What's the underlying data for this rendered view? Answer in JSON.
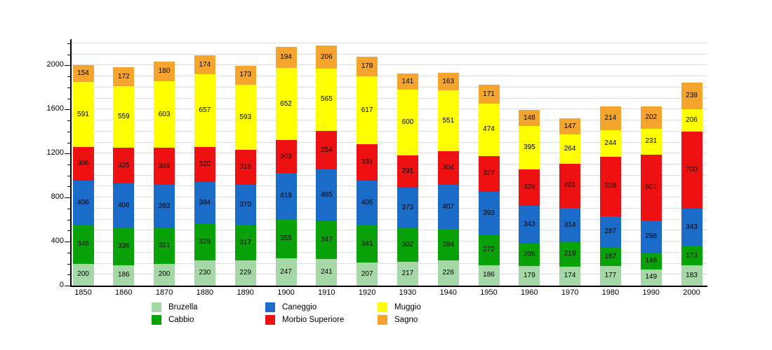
{
  "chart_data": {
    "type": "bar",
    "stacked": true,
    "title": "",
    "xlabel": "",
    "ylabel": "",
    "categories": [
      "1850",
      "1860",
      "1870",
      "1880",
      "1890",
      "1900",
      "1910",
      "1920",
      "1930",
      "1940",
      "1950",
      "1960",
      "1970",
      "1980",
      "1990",
      "2000"
    ],
    "series": [
      {
        "name": "Bruzella",
        "color": "#A6D7A6",
        "values": [
          200,
          186,
          200,
          230,
          229,
          247,
          241,
          207,
          217,
          226,
          186,
          179,
          174,
          177,
          149,
          183
        ]
      },
      {
        "name": "Cabbio",
        "color": "#09A309",
        "values": [
          346,
          336,
          321,
          328,
          317,
          355,
          347,
          341,
          302,
          284,
          272,
          205,
          219,
          167,
          146,
          173
        ]
      },
      {
        "name": "Caneggio",
        "color": "#1B6CC8",
        "values": [
          406,
          406,
          393,
          384,
          370,
          419,
          465,
          405,
          373,
          407,
          393,
          343,
          314,
          287,
          296,
          343
        ]
      },
      {
        "name": "Morbio Superiore",
        "color": "#EE1111",
        "values": [
          306,
          325,
          339,
          320,
          316,
          303,
          354,
          331,
          291,
          304,
          327,
          326,
          401,
          538,
          601,
          700
        ]
      },
      {
        "name": "Muggio",
        "color": "#FFFF00",
        "values": [
          591,
          559,
          603,
          657,
          593,
          652,
          565,
          617,
          600,
          551,
          474,
          395,
          264,
          244,
          231,
          206
        ]
      },
      {
        "name": "Sagno",
        "color": "#F5A42E",
        "values": [
          154,
          172,
          180,
          174,
          173,
          194,
          206,
          178,
          141,
          163,
          171,
          148,
          147,
          214,
          202,
          238
        ]
      }
    ],
    "ylim": [
      0,
      2200
    ],
    "yticks": [
      0,
      400,
      800,
      1200,
      1600,
      2000
    ],
    "minor_grid_step": 100,
    "grid": true,
    "grid_color": "#DCDCDC",
    "axis_color": "#000000",
    "legend_position": "bottom",
    "legend_columns": [
      [
        "Bruzella",
        "Cabbio"
      ],
      [
        "Caneggio",
        "Morbio Superiore"
      ],
      [
        "Muggio",
        "Sagno"
      ]
    ]
  }
}
